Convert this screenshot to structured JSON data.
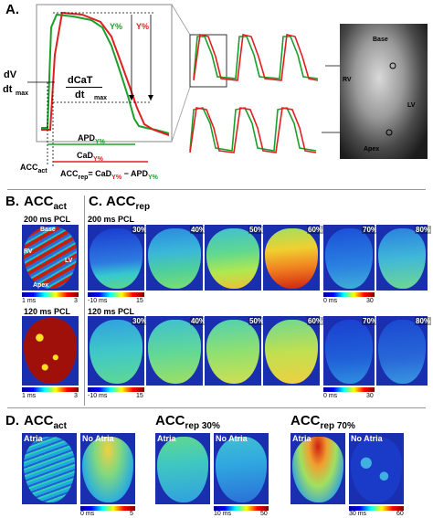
{
  "panel_a": {
    "letter": "A.",
    "y_left": "Y%",
    "y_right": "Y%",
    "dvdt_num": "dV",
    "dvdt_den": "dt",
    "dvdt_sub": "max",
    "dcat_num": "dCaT",
    "dcat_den": "dt",
    "dcat_sub": "max",
    "apd": "APD",
    "apd_sub": "Y%",
    "cad": "CaD",
    "cad_sub": "Y%",
    "acc_act": "ACC",
    "acc_act_sub": "act",
    "eq_lhs": "ACC",
    "eq_lhs_sub": "rep",
    "eq_mid": "= CaD",
    "eq_mid_sub": "Y%",
    "eq_minus": " − APD",
    "eq_minus_sub": "Y%",
    "camera_labels": {
      "base": "Base",
      "rv": "RV",
      "lv": "LV",
      "apex": "Apex"
    }
  },
  "panel_b": {
    "letter": "B.",
    "title": "ACC",
    "title_sub": "act",
    "row1_pcl": "200 ms PCL",
    "row2_pcl": "120 ms PCL",
    "map_labels": {
      "base": "Base",
      "rv": "RV",
      "lv": "LV",
      "apex": "Apex"
    },
    "cb1_min": "1 ms",
    "cb1_max": "3",
    "cb2_min": "1 ms",
    "cb2_max": "3"
  },
  "panel_c": {
    "letter": "C.",
    "title": "ACC",
    "title_sub": "rep",
    "row1_pcl": "200 ms PCL",
    "row2_pcl": "120 ms PCL",
    "percents": [
      "30%",
      "40%",
      "50%",
      "60%",
      "70%",
      "80%"
    ],
    "cb_a_min": "-10 ms",
    "cb_a_max": "15",
    "cb_b_min": "0 ms",
    "cb_b_max": "30",
    "cb_c_min": "-10 ms",
    "cb_c_max": "15",
    "cb_d_min": "0 ms",
    "cb_d_max": "30"
  },
  "panel_d": {
    "letter": "D.",
    "group1_title": "ACC",
    "group1_sub": "act",
    "group2_title": "ACC",
    "group2_sub": "rep 30%",
    "group3_title": "ACC",
    "group3_sub": "rep 70%",
    "atria": "Atria",
    "no_atria": "No Atria",
    "cb1_min": "0 ms",
    "cb1_max": "5",
    "cb2_min": "10 ms",
    "cb2_max": "50",
    "cb3_min": "30 ms",
    "cb3_max": "60"
  },
  "colors": {
    "voltage_trace": "#1aa02a",
    "calcium_trace": "#e02020",
    "jet_low": "#00008f",
    "jet_high": "#800000"
  }
}
